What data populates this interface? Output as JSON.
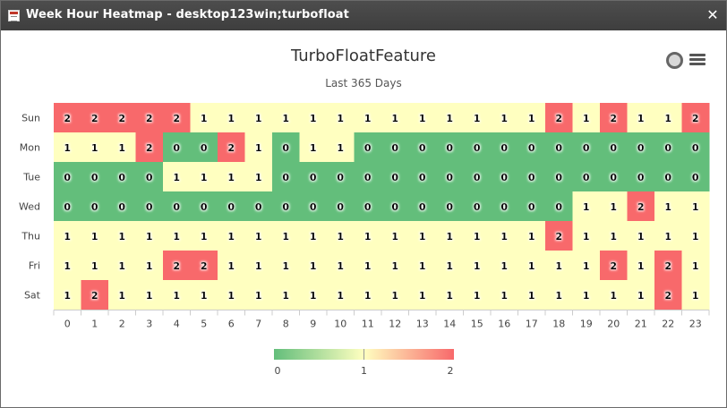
{
  "window": {
    "title": "Week Hour Heatmap - desktop123win;turbofloat",
    "close_glyph": "✕",
    "icon": "table-icon"
  },
  "toolbar": {
    "export_icon": "circle-icon",
    "menu_icon": "hamburger-menu-icon"
  },
  "chart_data": {
    "type": "heatmap",
    "title": "TurboFloatFeature",
    "subtitle": "Last 365 Days",
    "x_categories": [
      "0",
      "1",
      "2",
      "3",
      "4",
      "5",
      "6",
      "7",
      "8",
      "9",
      "10",
      "11",
      "12",
      "13",
      "14",
      "15",
      "16",
      "17",
      "18",
      "19",
      "20",
      "21",
      "22",
      "23"
    ],
    "y_categories": [
      "Sun",
      "Mon",
      "Tue",
      "Wed",
      "Thu",
      "Fri",
      "Sat"
    ],
    "values": [
      [
        2,
        2,
        2,
        2,
        2,
        1,
        1,
        1,
        1,
        1,
        1,
        1,
        1,
        1,
        1,
        1,
        1,
        1,
        2,
        1,
        2,
        1,
        1,
        2
      ],
      [
        1,
        1,
        1,
        2,
        0,
        0,
        2,
        1,
        0,
        1,
        1,
        0,
        0,
        0,
        0,
        0,
        0,
        0,
        0,
        0,
        0,
        0,
        0,
        0
      ],
      [
        0,
        0,
        0,
        0,
        1,
        1,
        1,
        1,
        0,
        0,
        0,
        0,
        0,
        0,
        0,
        0,
        0,
        0,
        0,
        0,
        0,
        0,
        0,
        0
      ],
      [
        0,
        0,
        0,
        0,
        0,
        0,
        0,
        0,
        0,
        0,
        0,
        0,
        0,
        0,
        0,
        0,
        0,
        0,
        0,
        1,
        1,
        2,
        1,
        1
      ],
      [
        1,
        1,
        1,
        1,
        1,
        1,
        1,
        1,
        1,
        1,
        1,
        1,
        1,
        1,
        1,
        1,
        1,
        1,
        2,
        1,
        1,
        1,
        1,
        1
      ],
      [
        1,
        1,
        1,
        1,
        2,
        2,
        1,
        1,
        1,
        1,
        1,
        1,
        1,
        1,
        1,
        1,
        1,
        1,
        1,
        1,
        2,
        1,
        2,
        1
      ],
      [
        1,
        2,
        1,
        1,
        1,
        1,
        1,
        1,
        1,
        1,
        1,
        1,
        1,
        1,
        1,
        1,
        1,
        1,
        1,
        1,
        1,
        1,
        2,
        1
      ]
    ],
    "color_min": "#63be7b",
    "color_mid": "#ffffc0",
    "color_max": "#f8696b",
    "value_range": [
      0,
      2
    ],
    "colorbar_ticks": [
      "0",
      "1",
      "2"
    ],
    "legend_position": "bottom-center"
  }
}
